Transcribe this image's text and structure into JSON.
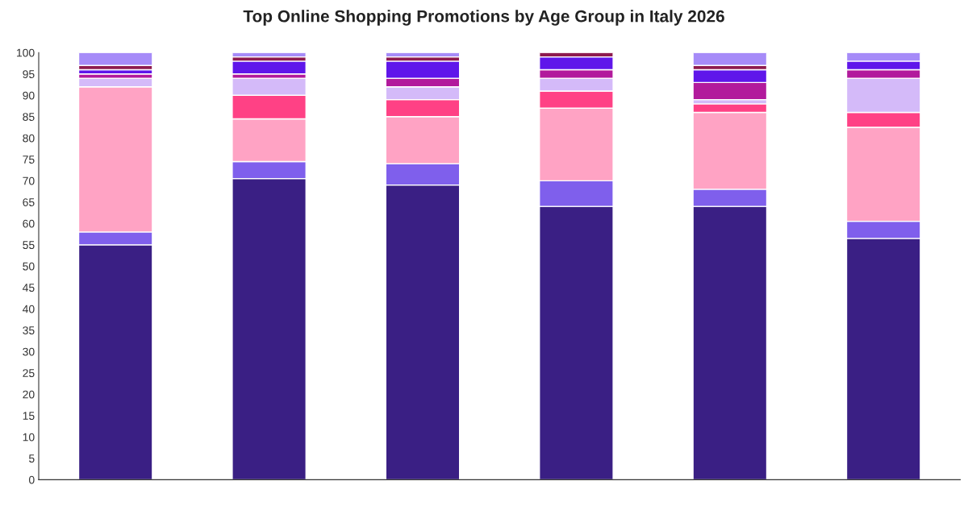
{
  "chart_data": {
    "type": "bar",
    "title": "Top Online Shopping Promotions by Age Group in Italy 2026",
    "categories": [
      null,
      null,
      null,
      null,
      null,
      null
    ],
    "stacked": true,
    "series": [
      {
        "color": "#3a1f84",
        "values": [
          55,
          70.5,
          69,
          64,
          64,
          56.5
        ]
      },
      {
        "color": "#7f5fec",
        "values": [
          3,
          4,
          5,
          6,
          4,
          4
        ]
      },
      {
        "color": "#ffa3c4",
        "values": [
          34,
          10,
          11,
          17,
          18,
          22
        ]
      },
      {
        "color": "#ff4185",
        "values": [
          0,
          5.5,
          4,
          4,
          2,
          3.5
        ]
      },
      {
        "color": "#d4baf9",
        "values": [
          2,
          4,
          3,
          3,
          1,
          8
        ]
      },
      {
        "color": "#b21a9c",
        "values": [
          1,
          1,
          2,
          2,
          4,
          2
        ]
      },
      {
        "color": "#5f16ea",
        "values": [
          1,
          3,
          4,
          3,
          3,
          2
        ]
      },
      {
        "color": "#8e1a4f",
        "values": [
          1,
          1,
          1,
          1,
          1,
          0
        ]
      },
      {
        "color": "#a68bf8",
        "values": [
          3,
          1,
          1,
          0,
          3,
          2
        ]
      }
    ],
    "ylim": [
      0,
      100
    ],
    "yticks": [
      0,
      5,
      10,
      15,
      20,
      25,
      30,
      35,
      40,
      45,
      50,
      55,
      60,
      65,
      70,
      75,
      80,
      85,
      90,
      95,
      100
    ],
    "tick_labels": "y",
    "grid": false,
    "legend": false
  }
}
